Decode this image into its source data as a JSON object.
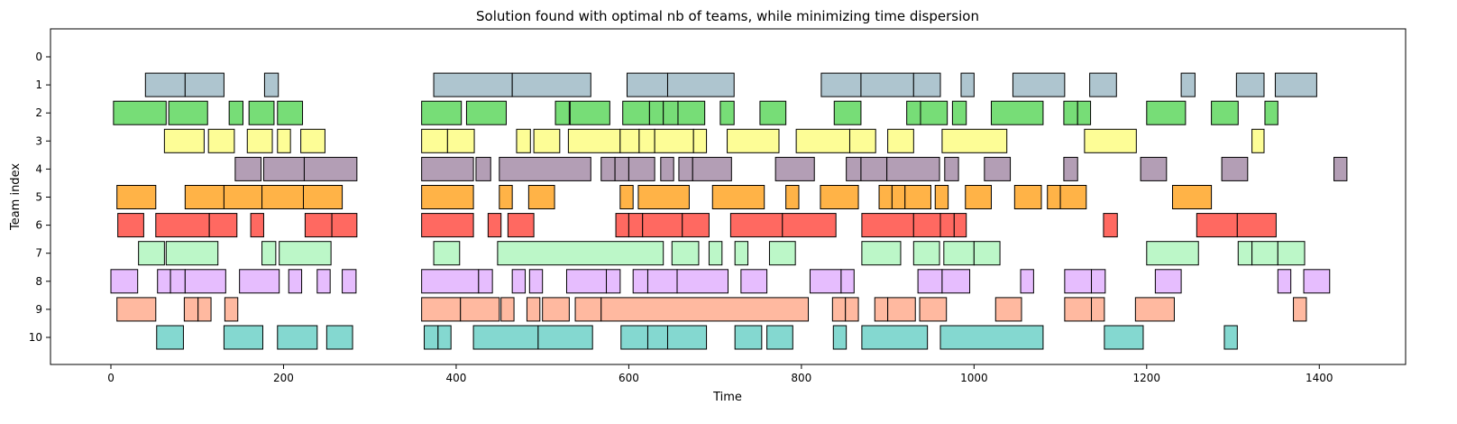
{
  "chart_data": {
    "type": "gantt",
    "title": "Solution found with optimal nb of teams, while minimizing time dispersion",
    "xlabel": "Time",
    "ylabel": "Team index",
    "xlim": [
      -70,
      1500
    ],
    "xticks": [
      0,
      200,
      400,
      600,
      800,
      1000,
      1200,
      1400
    ],
    "yticks": [
      0,
      1,
      2,
      3,
      4,
      5,
      6,
      7,
      8,
      9,
      10
    ],
    "grid": false,
    "teams": [
      {
        "team": 0,
        "color": "#aec7e8",
        "tasks": []
      },
      {
        "team": 1,
        "color": "#aec5cf",
        "tasks": [
          [
            40,
            86
          ],
          [
            86,
            131
          ],
          [
            178,
            194
          ],
          [
            374,
            465
          ],
          [
            465,
            556
          ],
          [
            598,
            645
          ],
          [
            645,
            722
          ],
          [
            823,
            869
          ],
          [
            869,
            930
          ],
          [
            930,
            961
          ],
          [
            985,
            1000
          ],
          [
            1045,
            1105
          ],
          [
            1134,
            1165
          ],
          [
            1240,
            1256
          ],
          [
            1304,
            1336
          ],
          [
            1349,
            1397
          ]
        ]
      },
      {
        "team": 2,
        "color": "#77dd77",
        "tasks": [
          [
            3,
            64
          ],
          [
            67,
            112
          ],
          [
            137,
            153
          ],
          [
            160,
            189
          ],
          [
            193,
            222
          ],
          [
            360,
            406
          ],
          [
            412,
            458
          ],
          [
            515,
            531
          ],
          [
            532,
            578
          ],
          [
            593,
            624
          ],
          [
            624,
            640
          ],
          [
            640,
            657
          ],
          [
            657,
            688
          ],
          [
            706,
            722
          ],
          [
            752,
            782
          ],
          [
            838,
            869
          ],
          [
            922,
            938
          ],
          [
            938,
            969
          ],
          [
            975,
            991
          ],
          [
            1020,
            1080
          ],
          [
            1104,
            1120
          ],
          [
            1120,
            1135
          ],
          [
            1200,
            1245
          ],
          [
            1275,
            1306
          ],
          [
            1337,
            1352
          ]
        ]
      },
      {
        "team": 3,
        "color": "#fdfd96",
        "tasks": [
          [
            62,
            108
          ],
          [
            113,
            143
          ],
          [
            158,
            187
          ],
          [
            193,
            208
          ],
          [
            220,
            248
          ],
          [
            360,
            390
          ],
          [
            390,
            421
          ],
          [
            470,
            486
          ],
          [
            490,
            520
          ],
          [
            530,
            590
          ],
          [
            590,
            612
          ],
          [
            612,
            630
          ],
          [
            630,
            675
          ],
          [
            675,
            690
          ],
          [
            714,
            774
          ],
          [
            794,
            856
          ],
          [
            856,
            886
          ],
          [
            900,
            930
          ],
          [
            963,
            1038
          ],
          [
            1128,
            1188
          ],
          [
            1322,
            1336
          ]
        ]
      },
      {
        "team": 4,
        "color": "#b39eb5",
        "tasks": [
          [
            144,
            174
          ],
          [
            177,
            224
          ],
          [
            224,
            285
          ],
          [
            360,
            420
          ],
          [
            423,
            440
          ],
          [
            450,
            556
          ],
          [
            568,
            584
          ],
          [
            584,
            600
          ],
          [
            600,
            630
          ],
          [
            637,
            652
          ],
          [
            658,
            674
          ],
          [
            674,
            719
          ],
          [
            770,
            815
          ],
          [
            852,
            869
          ],
          [
            869,
            899
          ],
          [
            899,
            960
          ],
          [
            966,
            982
          ],
          [
            1012,
            1042
          ],
          [
            1104,
            1120
          ],
          [
            1193,
            1223
          ],
          [
            1287,
            1317
          ],
          [
            1417,
            1432
          ]
        ]
      },
      {
        "team": 5,
        "color": "#ffb347",
        "tasks": [
          [
            7,
            52
          ],
          [
            86,
            131
          ],
          [
            131,
            175
          ],
          [
            175,
            223
          ],
          [
            223,
            268
          ],
          [
            360,
            420
          ],
          [
            450,
            465
          ],
          [
            484,
            514
          ],
          [
            590,
            605
          ],
          [
            611,
            670
          ],
          [
            697,
            757
          ],
          [
            782,
            797
          ],
          [
            822,
            866
          ],
          [
            890,
            905
          ],
          [
            905,
            920
          ],
          [
            920,
            950
          ],
          [
            955,
            970
          ],
          [
            990,
            1020
          ],
          [
            1047,
            1078
          ],
          [
            1085,
            1100
          ],
          [
            1100,
            1130
          ],
          [
            1230,
            1275
          ]
        ]
      },
      {
        "team": 6,
        "color": "#ff6961",
        "tasks": [
          [
            8,
            38
          ],
          [
            52,
            114
          ],
          [
            114,
            146
          ],
          [
            162,
            177
          ],
          [
            225,
            256
          ],
          [
            256,
            285
          ],
          [
            360,
            420
          ],
          [
            437,
            452
          ],
          [
            460,
            490
          ],
          [
            585,
            600
          ],
          [
            600,
            616
          ],
          [
            616,
            662
          ],
          [
            662,
            693
          ],
          [
            718,
            778
          ],
          [
            778,
            840
          ],
          [
            870,
            930
          ],
          [
            930,
            961
          ],
          [
            961,
            977
          ],
          [
            977,
            991
          ],
          [
            1150,
            1166
          ],
          [
            1258,
            1305
          ],
          [
            1305,
            1350
          ]
        ]
      },
      {
        "team": 7,
        "color": "#bcf7c8",
        "tasks": [
          [
            32,
            62
          ],
          [
            64,
            124
          ],
          [
            175,
            191
          ],
          [
            195,
            255
          ],
          [
            374,
            404
          ],
          [
            448,
            640
          ],
          [
            650,
            681
          ],
          [
            693,
            708
          ],
          [
            723,
            738
          ],
          [
            763,
            793
          ],
          [
            870,
            915
          ],
          [
            930,
            960
          ],
          [
            965,
            1000
          ],
          [
            1000,
            1030
          ],
          [
            1200,
            1260
          ],
          [
            1306,
            1322
          ],
          [
            1322,
            1352
          ],
          [
            1352,
            1383
          ]
        ]
      },
      {
        "team": 8,
        "color": "#e6bdfe",
        "tasks": [
          [
            0,
            31
          ],
          [
            54,
            69
          ],
          [
            69,
            86
          ],
          [
            86,
            133
          ],
          [
            149,
            195
          ],
          [
            206,
            221
          ],
          [
            239,
            254
          ],
          [
            268,
            284
          ],
          [
            360,
            426
          ],
          [
            426,
            442
          ],
          [
            465,
            480
          ],
          [
            485,
            500
          ],
          [
            528,
            574
          ],
          [
            574,
            590
          ],
          [
            605,
            622
          ],
          [
            622,
            656
          ],
          [
            656,
            715
          ],
          [
            730,
            760
          ],
          [
            810,
            846
          ],
          [
            846,
            861
          ],
          [
            935,
            963
          ],
          [
            963,
            995
          ],
          [
            1054,
            1069
          ],
          [
            1105,
            1136
          ],
          [
            1136,
            1152
          ],
          [
            1210,
            1240
          ],
          [
            1352,
            1367
          ],
          [
            1382,
            1412
          ]
        ]
      },
      {
        "team": 9,
        "color": "#ffb9a0",
        "tasks": [
          [
            7,
            52
          ],
          [
            85,
            101
          ],
          [
            101,
            116
          ],
          [
            132,
            147
          ],
          [
            360,
            405
          ],
          [
            405,
            450
          ],
          [
            452,
            467
          ],
          [
            482,
            497
          ],
          [
            500,
            531
          ],
          [
            538,
            568
          ],
          [
            568,
            808
          ],
          [
            836,
            851
          ],
          [
            851,
            866
          ],
          [
            885,
            900
          ],
          [
            900,
            932
          ],
          [
            937,
            968
          ],
          [
            1025,
            1055
          ],
          [
            1105,
            1136
          ],
          [
            1136,
            1151
          ],
          [
            1187,
            1232
          ],
          [
            1370,
            1385
          ]
        ]
      },
      {
        "team": 10,
        "color": "#84d8d0",
        "tasks": [
          [
            53,
            84
          ],
          [
            131,
            176
          ],
          [
            193,
            239
          ],
          [
            250,
            280
          ],
          [
            363,
            379
          ],
          [
            379,
            394
          ],
          [
            420,
            495
          ],
          [
            495,
            558
          ],
          [
            591,
            622
          ],
          [
            622,
            645
          ],
          [
            645,
            690
          ],
          [
            723,
            754
          ],
          [
            760,
            790
          ],
          [
            837,
            852
          ],
          [
            870,
            946
          ],
          [
            961,
            1080
          ],
          [
            1151,
            1196
          ],
          [
            1290,
            1305
          ]
        ]
      }
    ]
  }
}
